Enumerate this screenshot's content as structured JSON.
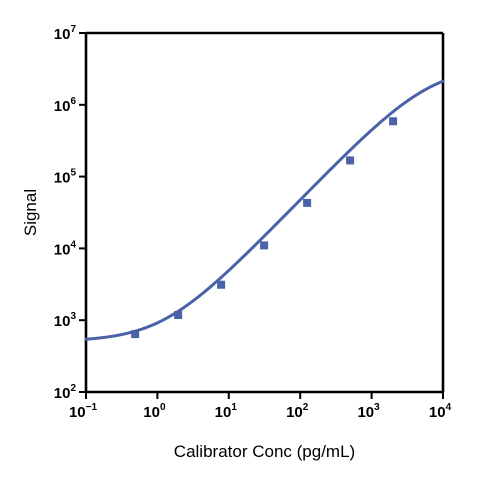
{
  "chart_data": {
    "type": "line",
    "title": "",
    "xlabel": "Calibrator Conc (pg/mL)",
    "ylabel": "Signal",
    "x_scale": "log",
    "y_scale": "log",
    "xlim": [
      0.1,
      10000
    ],
    "ylim": [
      100,
      10000000
    ],
    "x_ticks": [
      {
        "base": "10",
        "exp": "−1"
      },
      {
        "base": "10",
        "exp": "0"
      },
      {
        "base": "10",
        "exp": "1"
      },
      {
        "base": "10",
        "exp": "2"
      },
      {
        "base": "10",
        "exp": "3"
      },
      {
        "base": "10",
        "exp": "4"
      }
    ],
    "y_ticks": [
      {
        "base": "10",
        "exp": "2"
      },
      {
        "base": "10",
        "exp": "3"
      },
      {
        "base": "10",
        "exp": "4"
      },
      {
        "base": "10",
        "exp": "5"
      },
      {
        "base": "10",
        "exp": "6"
      },
      {
        "base": "10",
        "exp": "7"
      }
    ],
    "grid": false,
    "legend": "none",
    "color": "#4a62a8",
    "series": [
      {
        "marker": "square",
        "points": [
          {
            "x": 0.488,
            "y": 640
          },
          {
            "x": 1.95,
            "y": 1180
          },
          {
            "x": 7.81,
            "y": 3120
          },
          {
            "x": 31.25,
            "y": 11000
          },
          {
            "x": 125,
            "y": 43000
          },
          {
            "x": 500,
            "y": 168000
          },
          {
            "x": 2000,
            "y": 590000
          }
        ],
        "fit": {
          "model": "4PL",
          "x_range": [
            0.1,
            10000
          ],
          "bottom": 505,
          "top": 3500000,
          "ec50": 6500,
          "hill": 1.03
        }
      }
    ]
  }
}
